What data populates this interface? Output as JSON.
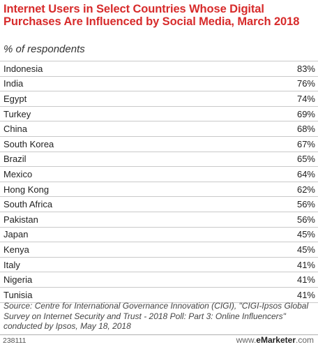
{
  "header": {
    "title": "Internet Users in Select Countries Whose Digital Purchases Are Influenced by Social Media, March 2018",
    "subtitle": "% of respondents"
  },
  "chart_data": {
    "type": "table",
    "title": "Internet Users in Select Countries Whose Digital Purchases Are Influenced by Social Media, March 2018",
    "subtitle": "% of respondents",
    "categories": [
      "Indonesia",
      "India",
      "Egypt",
      "Turkey",
      "China",
      "South Korea",
      "Brazil",
      "Mexico",
      "Hong Kong",
      "South Africa",
      "Pakistan",
      "Japan",
      "Kenya",
      "Italy",
      "Nigeria",
      "Tunisia"
    ],
    "values": [
      83,
      76,
      74,
      69,
      68,
      67,
      65,
      64,
      62,
      56,
      56,
      45,
      45,
      41,
      41,
      41
    ],
    "labels": [
      "83%",
      "76%",
      "74%",
      "69%",
      "68%",
      "67%",
      "65%",
      "64%",
      "62%",
      "56%",
      "56%",
      "45%",
      "45%",
      "41%",
      "41%",
      "41%"
    ]
  },
  "footer": {
    "source": "Source: Centre for International Governance Innovation (CIGI), \"CIGI-Ipsos Global Survey on Internet Security and Trust - 2018 Poll: Part 3: Online Influencers\" conducted by Ipsos, May 18, 2018",
    "chart_id": "238111",
    "brand_prefix": "www.",
    "brand_name": "eMarketer",
    "brand_suffix": ".com"
  }
}
